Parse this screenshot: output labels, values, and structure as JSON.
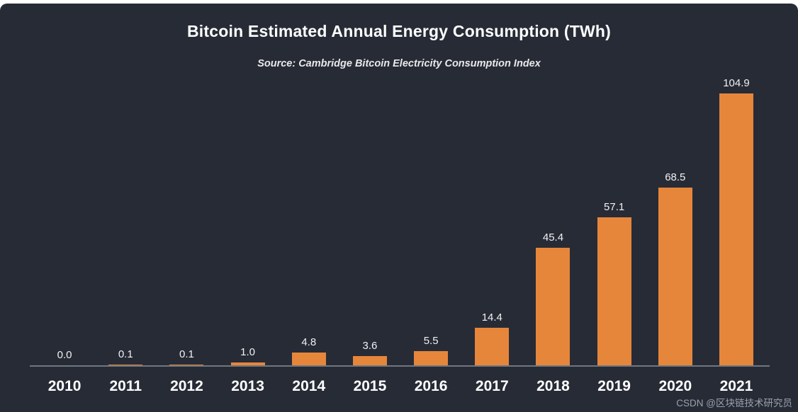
{
  "chart_data": {
    "type": "bar",
    "title": "Bitcoin Estimated Annual Energy Consumption (TWh)",
    "subtitle": "Source: Cambridge Bitcoin Electricity Consumption Index",
    "categories": [
      "2010",
      "2011",
      "2012",
      "2013",
      "2014",
      "2015",
      "2016",
      "2017",
      "2018",
      "2019",
      "2020",
      "2021"
    ],
    "values": [
      0.0,
      0.1,
      0.1,
      1.0,
      4.8,
      3.6,
      5.5,
      14.4,
      45.4,
      57.1,
      68.5,
      104.9
    ],
    "value_labels": [
      "0.0",
      "0.1",
      "0.1",
      "1.0",
      "4.8",
      "3.6",
      "5.5",
      "14.4",
      "45.4",
      "57.1",
      "68.5",
      "104.9"
    ],
    "xlabel": "",
    "ylabel": "",
    "ylim": [
      0,
      110
    ],
    "grid": false,
    "legend": "none",
    "bar_color": "#e6863b",
    "background_color": "#272b36",
    "text_color": "#ffffff"
  },
  "watermark": {
    "text": "CSDN @区块链技术研究员"
  }
}
